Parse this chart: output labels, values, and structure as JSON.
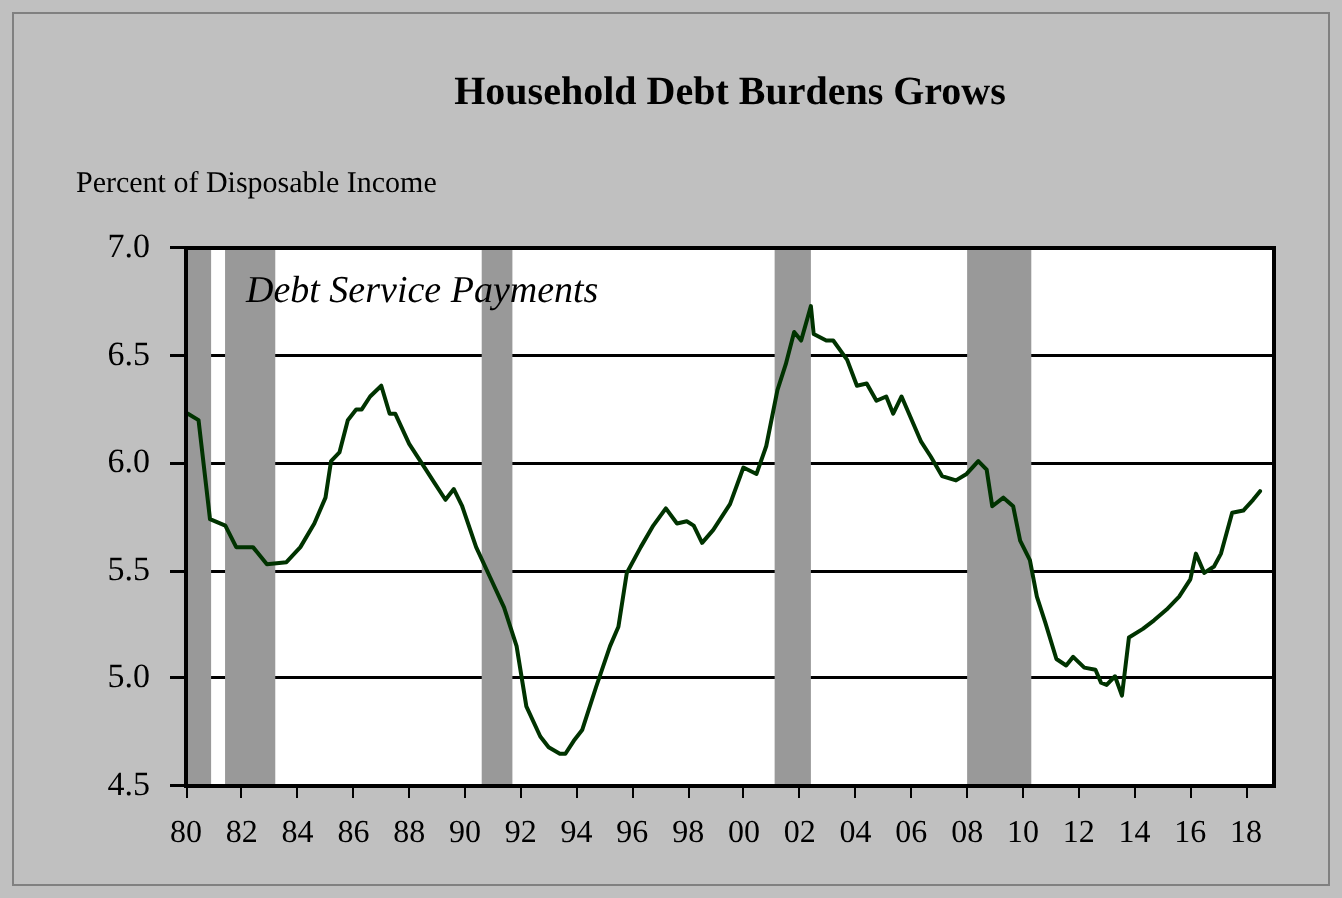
{
  "chart_data": {
    "type": "line",
    "title": "Household Debt Burdens Grows",
    "ylabel": "Percent of Disposable Income",
    "annotations": [
      "Debt Service Payments"
    ],
    "xlim": [
      1980,
      2019
    ],
    "xticks": [
      {
        "value": 1980,
        "label": "80"
      },
      {
        "value": 1982,
        "label": "82"
      },
      {
        "value": 1984,
        "label": "84"
      },
      {
        "value": 1986,
        "label": "86"
      },
      {
        "value": 1988,
        "label": "88"
      },
      {
        "value": 1990,
        "label": "90"
      },
      {
        "value": 1992,
        "label": "92"
      },
      {
        "value": 1994,
        "label": "94"
      },
      {
        "value": 1996,
        "label": "96"
      },
      {
        "value": 1998,
        "label": "98"
      },
      {
        "value": 2000,
        "label": "00"
      },
      {
        "value": 2002,
        "label": "02"
      },
      {
        "value": 2004,
        "label": "04"
      },
      {
        "value": 2006,
        "label": "06"
      },
      {
        "value": 2008,
        "label": "08"
      },
      {
        "value": 2010,
        "label": "10"
      },
      {
        "value": 2012,
        "label": "12"
      },
      {
        "value": 2014,
        "label": "14"
      },
      {
        "value": 2016,
        "label": "16"
      },
      {
        "value": 2018,
        "label": "18"
      }
    ],
    "ylim": [
      4.5,
      7.0
    ],
    "yticks": [
      {
        "value": 4.5,
        "label": "4.5"
      },
      {
        "value": 5.0,
        "label": "5.0"
      },
      {
        "value": 5.5,
        "label": "5.5"
      },
      {
        "value": 6.0,
        "label": "6.0"
      },
      {
        "value": 6.5,
        "label": "6.5"
      },
      {
        "value": 7.0,
        "label": "7.0"
      }
    ],
    "grid": "y",
    "legend": false,
    "marker": "none",
    "line_style": "solid",
    "bands": [
      {
        "axis": "x",
        "from": 1980.0,
        "to": 1980.9,
        "color": "#999999"
      },
      {
        "axis": "x",
        "from": 1981.4,
        "to": 1983.2,
        "color": "#999999"
      },
      {
        "axis": "x",
        "from": 1990.6,
        "to": 1991.7,
        "color": "#999999"
      },
      {
        "axis": "x",
        "from": 2001.1,
        "to": 2002.4,
        "color": "#999999"
      },
      {
        "axis": "x",
        "from": 2008.0,
        "to": 2010.3,
        "color": "#999999"
      }
    ],
    "series": [
      {
        "color": "#003300",
        "x": [
          1980.07,
          1980.45,
          1980.86,
          1981.41,
          1981.8,
          1982.4,
          1982.9,
          1983.6,
          1984.1,
          1984.6,
          1985.0,
          1985.2,
          1985.5,
          1985.8,
          1986.1,
          1986.3,
          1986.6,
          1987.0,
          1987.3,
          1987.5,
          1988.0,
          1988.6,
          1988.9,
          1989.3,
          1989.6,
          1989.9,
          1990.4,
          1990.9,
          1991.4,
          1991.85,
          1992.2,
          1992.7,
          1993.0,
          1993.4,
          1993.6,
          1993.9,
          1994.2,
          1994.7,
          1995.2,
          1995.5,
          1995.8,
          1996.3,
          1996.75,
          1997.2,
          1997.6,
          1997.95,
          1998.2,
          1998.5,
          1998.9,
          1999.5,
          1999.98,
          2000.45,
          2000.8,
          2001.2,
          2001.5,
          2001.8,
          2002.05,
          2002.4,
          2002.5,
          2002.95,
          2003.2,
          2003.7,
          2004.05,
          2004.4,
          2004.75,
          2005.1,
          2005.35,
          2005.65,
          2006.35,
          2006.7,
          2007.1,
          2007.6,
          2007.98,
          2008.4,
          2008.7,
          2008.9,
          2009.3,
          2009.65,
          2009.9,
          2010.25,
          2010.5,
          2010.8,
          2011.2,
          2011.55,
          2011.8,
          2012.2,
          2012.6,
          2012.8,
          2013.0,
          2013.3,
          2013.55,
          2013.8,
          2014.3,
          2014.7,
          2015.15,
          2015.6,
          2016.0,
          2016.2,
          2016.5,
          2016.85,
          2017.1,
          2017.5,
          2017.9,
          2018.25,
          2018.5
        ],
        "values": [
          6.23,
          6.2,
          5.74,
          5.71,
          5.61,
          5.61,
          5.53,
          5.54,
          5.61,
          5.72,
          5.84,
          6.01,
          6.05,
          6.2,
          6.25,
          6.25,
          6.31,
          6.36,
          6.23,
          6.23,
          6.09,
          5.97,
          5.91,
          5.83,
          5.88,
          5.8,
          5.61,
          5.47,
          5.33,
          5.15,
          4.87,
          4.73,
          4.68,
          4.65,
          4.65,
          4.71,
          4.76,
          4.96,
          5.15,
          5.24,
          5.49,
          5.61,
          5.71,
          5.79,
          5.72,
          5.73,
          5.71,
          5.63,
          5.69,
          5.81,
          5.98,
          5.95,
          6.08,
          6.34,
          6.46,
          6.61,
          6.57,
          6.73,
          6.6,
          6.57,
          6.57,
          6.48,
          6.36,
          6.37,
          6.29,
          6.31,
          6.23,
          6.31,
          6.1,
          6.03,
          5.94,
          5.92,
          5.95,
          6.01,
          5.97,
          5.8,
          5.84,
          5.8,
          5.64,
          5.55,
          5.38,
          5.26,
          5.09,
          5.06,
          5.1,
          5.05,
          5.04,
          4.98,
          4.97,
          5.01,
          4.92,
          5.19,
          5.23,
          5.27,
          5.32,
          5.38,
          5.46,
          5.58,
          5.49,
          5.52,
          5.58,
          5.77,
          5.78,
          5.83,
          5.87
        ]
      }
    ]
  }
}
